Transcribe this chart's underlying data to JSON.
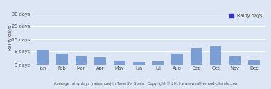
{
  "months": [
    "Jan",
    "Feb",
    "Mar",
    "Apr",
    "May",
    "Jun",
    "Jul",
    "Aug",
    "Sep",
    "Oct",
    "Nov",
    "Dec"
  ],
  "values": [
    9,
    6.5,
    5.5,
    4.5,
    2.5,
    1.5,
    2,
    6.5,
    10,
    11,
    5.5,
    3
  ],
  "bar_color": "#7b9fd4",
  "background_color": "#dce6f5",
  "grid_color": "#ffffff",
  "ylabel": "Rainy days",
  "yticks": [
    0,
    8,
    15,
    23,
    30
  ],
  "ytick_labels": [
    "0 days",
    "8 days",
    "15 days",
    "23 days",
    "30 days"
  ],
  "ylim": [
    0,
    32
  ],
  "legend_label": "Rainy days",
  "legend_color": "#3333cc",
  "xlabel_text": "Average rainy days (rain/snow) in Tenerife, Spain   Copyright © 2019 www.weather-and-climate.com",
  "tick_fontsize": 4.8,
  "ylabel_fontsize": 4.8,
  "xlabel_fontsize": 3.8
}
